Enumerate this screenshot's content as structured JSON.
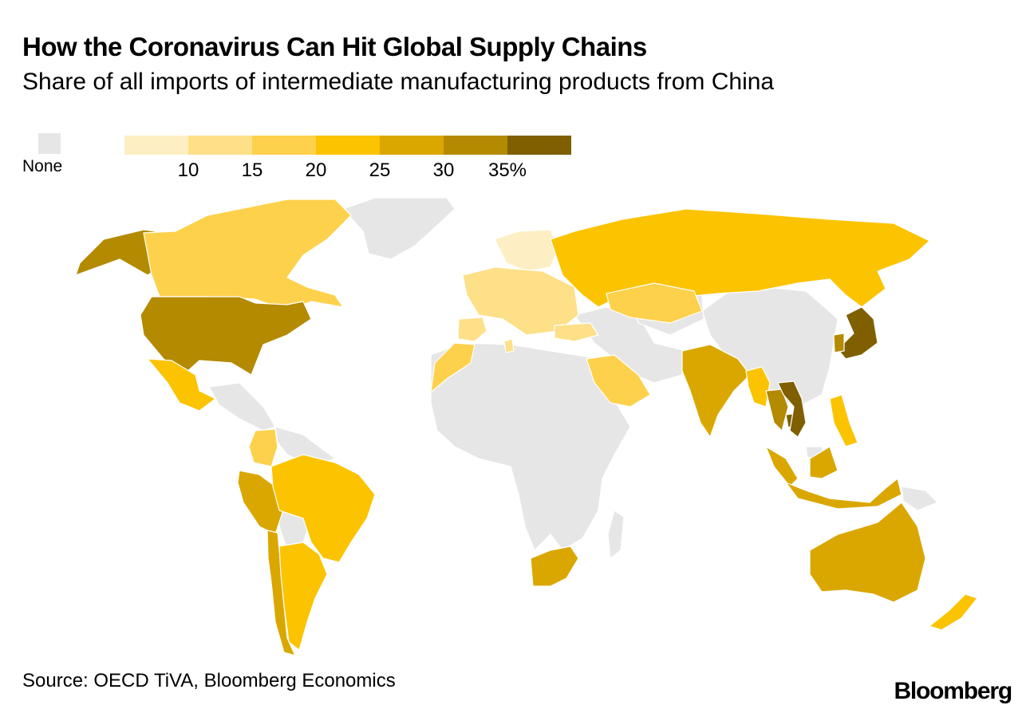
{
  "title": "How the Coronavirus Can Hit Global Supply Chains",
  "subtitle": "Share of all imports of intermediate manufacturing products from China",
  "legend": {
    "none_label": "None",
    "none_color": "#e6e6e6",
    "bins": [
      {
        "range": "<10",
        "color": "#fdefc3"
      },
      {
        "range": "10-15",
        "color": "#fde087"
      },
      {
        "range": "15-20",
        "color": "#fdd14b"
      },
      {
        "range": "20-25",
        "color": "#fcc300"
      },
      {
        "range": "25-30",
        "color": "#daa700"
      },
      {
        "range": "30-35",
        "color": "#b48a00"
      },
      {
        "range": ">=35",
        "color": "#7f5f00"
      }
    ],
    "ticks": [
      "10",
      "15",
      "20",
      "25",
      "30",
      "35%"
    ]
  },
  "map": {
    "unit": "% of intermediate manufacturing imports from China",
    "regions": [
      {
        "name": "United States",
        "bin": 5
      },
      {
        "name": "Alaska",
        "bin": 5
      },
      {
        "name": "Canada",
        "bin": 2
      },
      {
        "name": "Mexico",
        "bin": 3
      },
      {
        "name": "Colombia",
        "bin": 2
      },
      {
        "name": "Peru",
        "bin": 4
      },
      {
        "name": "Brazil",
        "bin": 3
      },
      {
        "name": "Chile",
        "bin": 4
      },
      {
        "name": "Argentina",
        "bin": 3
      },
      {
        "name": "Northern Europe",
        "bin": 0
      },
      {
        "name": "Western Europe",
        "bin": 1
      },
      {
        "name": "Iberia",
        "bin": 1
      },
      {
        "name": "Morocco",
        "bin": 2
      },
      {
        "name": "Tunisia",
        "bin": 1
      },
      {
        "name": "Turkey",
        "bin": 1
      },
      {
        "name": "Russia",
        "bin": 3
      },
      {
        "name": "Kazakhstan",
        "bin": 2
      },
      {
        "name": "Saudi Arabia",
        "bin": 2
      },
      {
        "name": "India",
        "bin": 4
      },
      {
        "name": "Myanmar",
        "bin": 3
      },
      {
        "name": "Thailand",
        "bin": 5
      },
      {
        "name": "Cambodia",
        "bin": 6
      },
      {
        "name": "Vietnam",
        "bin": 6
      },
      {
        "name": "Malaysia",
        "bin": 4
      },
      {
        "name": "Indonesia",
        "bin": 4
      },
      {
        "name": "Philippines",
        "bin": 3
      },
      {
        "name": "Japan",
        "bin": 6
      },
      {
        "name": "South Korea",
        "bin": 5
      },
      {
        "name": "Australia",
        "bin": 4
      },
      {
        "name": "New Zealand",
        "bin": 3
      },
      {
        "name": "South Africa",
        "bin": 4
      }
    ]
  },
  "source": "Source: OECD TiVA, Bloomberg Economics",
  "logo": "Bloomberg"
}
